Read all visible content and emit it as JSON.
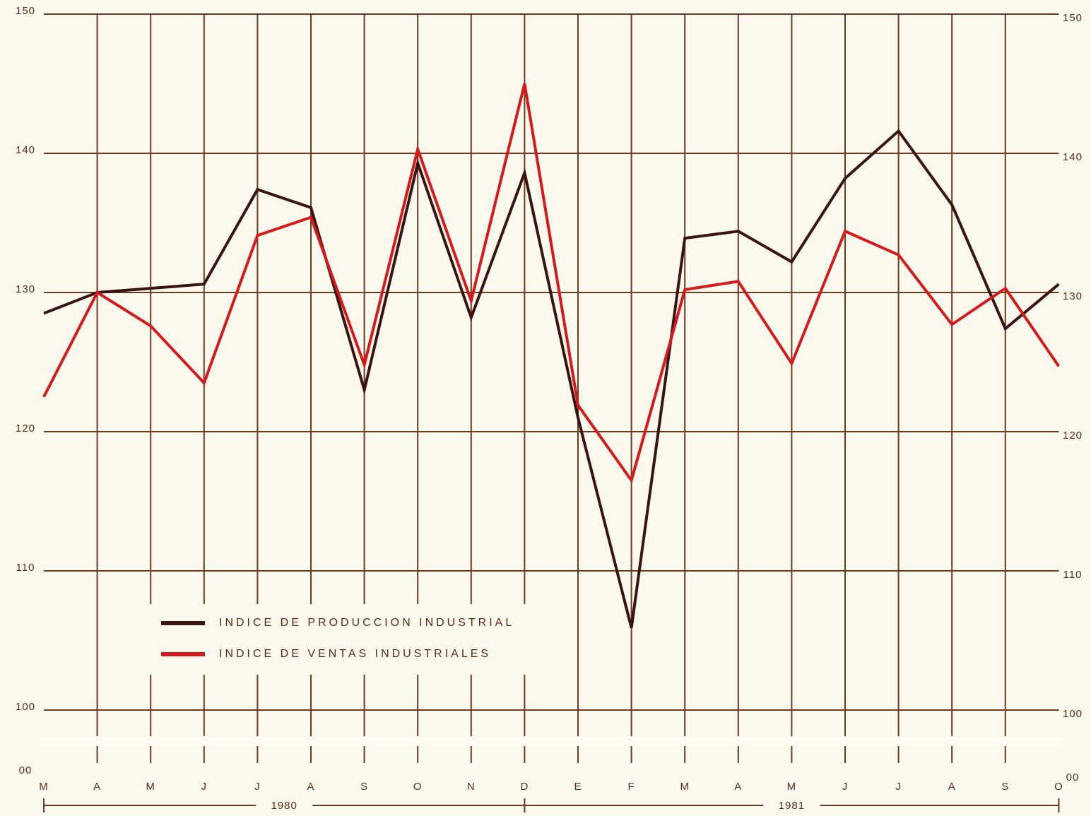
{
  "chart_data": {
    "type": "line",
    "categories": [
      "M",
      "A",
      "M",
      "J",
      "J",
      "A",
      "S",
      "O",
      "N",
      "D",
      "E",
      "F",
      "M",
      "A",
      "M",
      "J",
      "J",
      "A",
      "S",
      "O"
    ],
    "series": [
      {
        "name": "INDICE DE PRODUCCION INDUSTRIAL",
        "color": "#3a1410",
        "values": [
          128.5,
          130,
          130.3,
          130.6,
          137.4,
          136.1,
          123,
          139.3,
          128.2,
          138.6,
          121,
          105.9,
          133.9,
          134.4,
          132.2,
          138.2,
          141.6,
          136.3,
          127.4,
          130.6
        ]
      },
      {
        "name": "INDICE DE VENTAS INDUSTRIALES",
        "color": "#d41a1a",
        "values": [
          122.5,
          130,
          127.6,
          123.5,
          134.1,
          135.4,
          124.8,
          140.3,
          129.4,
          145,
          121.9,
          116.5,
          130.2,
          130.8,
          124.9,
          134.4,
          132.7,
          127.7,
          130.3,
          124.7
        ]
      }
    ],
    "ylim": [
      100,
      150
    ],
    "yticks": [
      100,
      110,
      120,
      130,
      140,
      150
    ],
    "axis_origin_label": "00",
    "year_labels": [
      "1980",
      "1981"
    ],
    "grid": true
  }
}
